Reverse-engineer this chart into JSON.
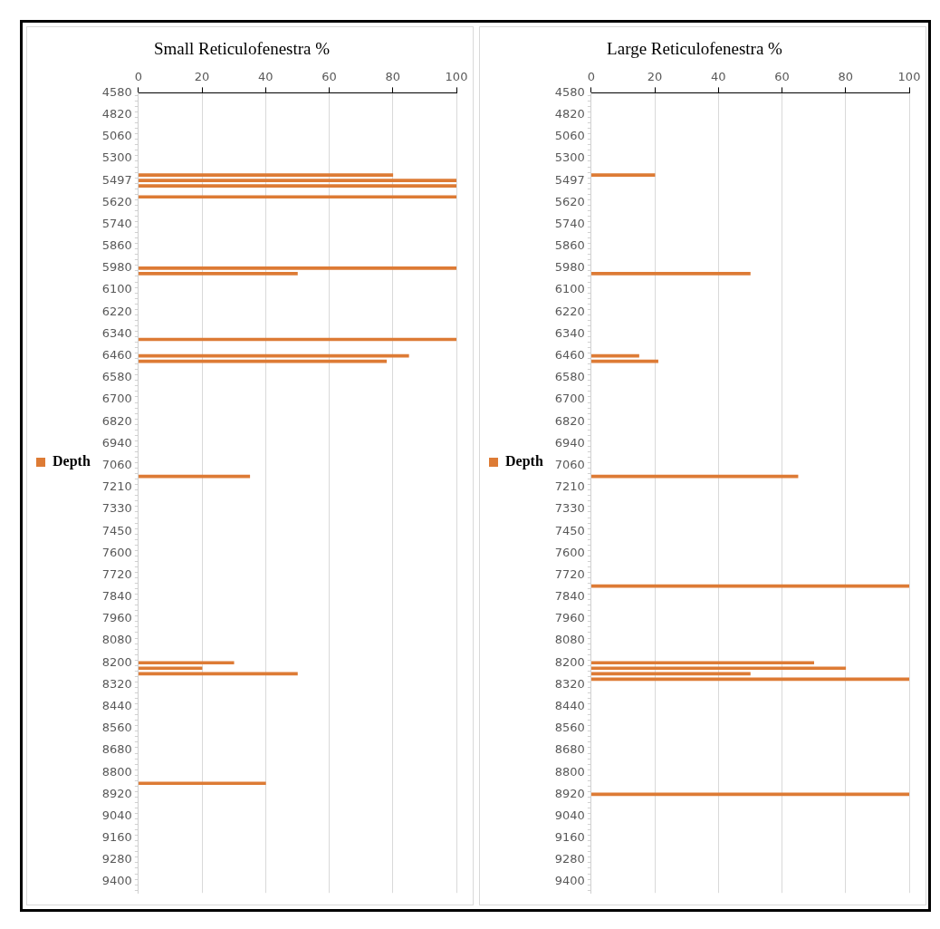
{
  "chart_data": [
    {
      "type": "bar",
      "orientation": "horizontal",
      "title": "Small Reticulofenestra %",
      "categories": [
        "4580",
        null,
        null,
        null,
        "4820",
        null,
        null,
        null,
        "5060",
        null,
        null,
        null,
        "5300",
        null,
        null,
        null,
        "5497",
        null,
        null,
        null,
        "5620",
        null,
        null,
        null,
        "5740",
        null,
        null,
        null,
        "5860",
        null,
        null,
        null,
        "5980",
        null,
        null,
        null,
        "6100",
        null,
        null,
        null,
        "6220",
        null,
        null,
        null,
        "6340",
        null,
        null,
        null,
        "6460",
        null,
        null,
        null,
        "6580",
        null,
        null,
        null,
        "6700",
        null,
        null,
        null,
        "6820",
        null,
        null,
        null,
        "6940",
        null,
        null,
        null,
        "7060",
        null,
        null,
        null,
        "7210",
        null,
        null,
        null,
        "7330",
        null,
        null,
        null,
        "7450",
        null,
        null,
        null,
        "7600",
        null,
        null,
        null,
        "7720",
        null,
        null,
        null,
        "7840",
        null,
        null,
        null,
        "7960",
        null,
        null,
        null,
        "8080",
        null,
        null,
        null,
        "8200",
        null,
        null,
        null,
        "8320",
        null,
        null,
        null,
        "8440",
        null,
        null,
        null,
        "8560",
        null,
        null,
        null,
        "8680",
        null,
        null,
        null,
        "8800",
        null,
        null,
        null,
        "8920",
        null,
        null,
        null,
        "9040",
        null,
        null,
        null,
        "9160",
        null,
        null,
        null,
        "9280",
        null,
        null,
        null,
        "9400",
        null,
        null
      ],
      "series": [
        {
          "name": "Depth",
          "color": "#dd7b35",
          "values": [
            null,
            null,
            null,
            null,
            null,
            null,
            null,
            null,
            null,
            null,
            null,
            null,
            null,
            null,
            null,
            80,
            100,
            100,
            null,
            100,
            null,
            null,
            null,
            null,
            null,
            null,
            null,
            null,
            null,
            null,
            null,
            null,
            100,
            50,
            null,
            null,
            null,
            null,
            null,
            null,
            null,
            null,
            null,
            null,
            null,
            100,
            null,
            null,
            85,
            78,
            null,
            null,
            null,
            null,
            null,
            null,
            null,
            null,
            null,
            null,
            null,
            null,
            null,
            null,
            null,
            null,
            null,
            null,
            null,
            null,
            35,
            null,
            null,
            null,
            null,
            null,
            null,
            null,
            null,
            null,
            null,
            null,
            null,
            null,
            null,
            null,
            null,
            null,
            null,
            null,
            null,
            null,
            null,
            null,
            null,
            null,
            null,
            null,
            null,
            null,
            null,
            null,
            null,
            null,
            30,
            20,
            50,
            null,
            null,
            null,
            null,
            null,
            null,
            null,
            null,
            null,
            null,
            null,
            null,
            null,
            null,
            null,
            null,
            null,
            null,
            null,
            40,
            null,
            null,
            null,
            null,
            null,
            null,
            null,
            null,
            null,
            null,
            null,
            null,
            null,
            null,
            null,
            null,
            null,
            null,
            null,
            null
          ]
        }
      ],
      "xlim": [
        0,
        100
      ],
      "xticks": [
        0,
        20,
        40,
        60,
        80,
        100
      ],
      "grid": "x",
      "legend": "left"
    },
    {
      "type": "bar",
      "orientation": "horizontal",
      "title": "Large Reticulofenestra %",
      "categories": [
        "4580",
        null,
        null,
        null,
        "4820",
        null,
        null,
        null,
        "5060",
        null,
        null,
        null,
        "5300",
        null,
        null,
        null,
        "5497",
        null,
        null,
        null,
        "5620",
        null,
        null,
        null,
        "5740",
        null,
        null,
        null,
        "5860",
        null,
        null,
        null,
        "5980",
        null,
        null,
        null,
        "6100",
        null,
        null,
        null,
        "6220",
        null,
        null,
        null,
        "6340",
        null,
        null,
        null,
        "6460",
        null,
        null,
        null,
        "6580",
        null,
        null,
        null,
        "6700",
        null,
        null,
        null,
        "6820",
        null,
        null,
        null,
        "6940",
        null,
        null,
        null,
        "7060",
        null,
        null,
        null,
        "7210",
        null,
        null,
        null,
        "7330",
        null,
        null,
        null,
        "7450",
        null,
        null,
        null,
        "7600",
        null,
        null,
        null,
        "7720",
        null,
        null,
        null,
        "7840",
        null,
        null,
        null,
        "7960",
        null,
        null,
        null,
        "8080",
        null,
        null,
        null,
        "8200",
        null,
        null,
        null,
        "8320",
        null,
        null,
        null,
        "8440",
        null,
        null,
        null,
        "8560",
        null,
        null,
        null,
        "8680",
        null,
        null,
        null,
        "8800",
        null,
        null,
        null,
        "8920",
        null,
        null,
        null,
        "9040",
        null,
        null,
        null,
        "9160",
        null,
        null,
        null,
        "9280",
        null,
        null,
        null,
        "9400",
        null,
        null
      ],
      "series": [
        {
          "name": "Depth",
          "color": "#dd7b35",
          "values": [
            null,
            null,
            null,
            null,
            null,
            null,
            null,
            null,
            null,
            null,
            null,
            null,
            null,
            null,
            null,
            20,
            null,
            null,
            null,
            null,
            null,
            null,
            null,
            null,
            null,
            null,
            null,
            null,
            null,
            null,
            null,
            null,
            null,
            50,
            null,
            null,
            null,
            null,
            null,
            null,
            null,
            null,
            null,
            null,
            null,
            null,
            null,
            null,
            15,
            21,
            null,
            null,
            null,
            null,
            null,
            null,
            null,
            null,
            null,
            null,
            null,
            null,
            null,
            null,
            null,
            null,
            null,
            null,
            null,
            null,
            65,
            null,
            null,
            null,
            null,
            null,
            null,
            null,
            null,
            null,
            null,
            null,
            null,
            null,
            null,
            null,
            null,
            null,
            null,
            null,
            100,
            null,
            null,
            null,
            null,
            null,
            null,
            null,
            null,
            null,
            null,
            null,
            null,
            null,
            70,
            80,
            50,
            100,
            null,
            null,
            null,
            null,
            null,
            null,
            null,
            null,
            null,
            null,
            null,
            null,
            null,
            null,
            null,
            null,
            null,
            null,
            null,
            null,
            100,
            null,
            null,
            null,
            null,
            null,
            null,
            null,
            null,
            null,
            null,
            null,
            null,
            null,
            null,
            null,
            null,
            null,
            null
          ]
        }
      ],
      "xlim": [
        0,
        100
      ],
      "xticks": [
        0,
        20,
        40,
        60,
        80,
        100
      ],
      "grid": "x",
      "legend": "left"
    }
  ]
}
